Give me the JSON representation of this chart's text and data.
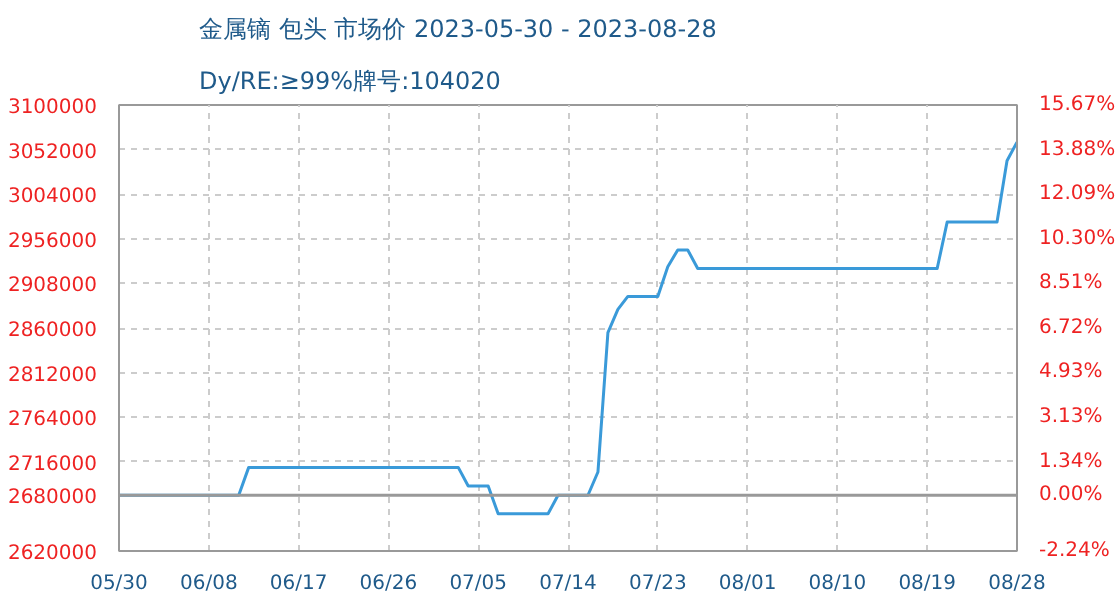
{
  "chart_data": {
    "type": "line",
    "title": "金属镝 包头 市场价 2023-05-30 - 2023-08-28",
    "subtitle": "Dy/RE:≥99%牌号:104020",
    "x": [
      "2023-05-30",
      "2023-06-11",
      "2023-06-12",
      "2023-07-03",
      "2023-07-04",
      "2023-07-06",
      "2023-07-07",
      "2023-07-12",
      "2023-07-13",
      "2023-07-16",
      "2023-07-17",
      "2023-07-18",
      "2023-07-19",
      "2023-07-20",
      "2023-07-23",
      "2023-07-24",
      "2023-07-25",
      "2023-07-26",
      "2023-07-27",
      "2023-08-20",
      "2023-08-21",
      "2023-08-26",
      "2023-08-27",
      "2023-08-28"
    ],
    "series": [
      {
        "color": "#3a9ad9",
        "values": [
          2680000,
          2680000,
          2710000,
          2710000,
          2690000,
          2690000,
          2660000,
          2660000,
          2680000,
          2680000,
          2705000,
          2855000,
          2880000,
          2894000,
          2894000,
          2926000,
          2944000,
          2944000,
          2924000,
          2924000,
          2974000,
          2974000,
          3040000,
          3060000
        ]
      }
    ],
    "xlim": [
      "2023-05-30",
      "2023-08-28"
    ],
    "xticks": [
      {
        "value": "2023-05-30",
        "label": "05/30"
      },
      {
        "value": "2023-06-08",
        "label": "06/08"
      },
      {
        "value": "2023-06-17",
        "label": "06/17"
      },
      {
        "value": "2023-06-26",
        "label": "06/26"
      },
      {
        "value": "2023-07-05",
        "label": "07/05"
      },
      {
        "value": "2023-07-14",
        "label": "07/14"
      },
      {
        "value": "2023-07-23",
        "label": "07/23"
      },
      {
        "value": "2023-08-01",
        "label": "08/01"
      },
      {
        "value": "2023-08-10",
        "label": "08/10"
      },
      {
        "value": "2023-08-19",
        "label": "08/19"
      },
      {
        "value": "2023-08-28",
        "label": "08/28"
      }
    ],
    "ylim": [
      2620000,
      3100000
    ],
    "yticks": [
      2620000,
      2680000,
      2716000,
      2764000,
      2812000,
      2860000,
      2908000,
      2956000,
      3004000,
      3052000,
      3100000
    ],
    "y2lim": [
      -2.24,
      15.67
    ],
    "y2ticks": [
      {
        "value": -2.24,
        "label": "-2.24%"
      },
      {
        "value": 0,
        "label": "0.00%"
      },
      {
        "value": 1.34,
        "label": "1.34%"
      },
      {
        "value": 3.13,
        "label": "3.13%"
      },
      {
        "value": 4.93,
        "label": "4.93%"
      },
      {
        "value": 6.72,
        "label": "6.72%"
      },
      {
        "value": 8.51,
        "label": "8.51%"
      },
      {
        "value": 10.3,
        "label": "10.30%"
      },
      {
        "value": 12.09,
        "label": "12.09%"
      },
      {
        "value": 13.88,
        "label": "13.88%"
      },
      {
        "value": 15.67,
        "label": "15.67%"
      }
    ],
    "ref_lines": [
      {
        "axis": "y",
        "value": 2680000,
        "color": "#999999",
        "line_style": "solid"
      }
    ],
    "grid": true,
    "line_style": "solid"
  }
}
